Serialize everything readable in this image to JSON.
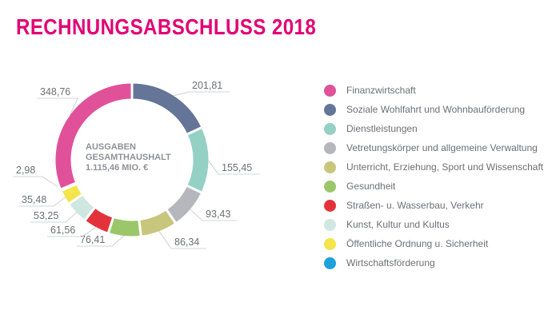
{
  "title": "RECHNUNGSABSCHLUSS 2018",
  "chart_data": {
    "type": "pie",
    "donut": true,
    "center_label": [
      "AUSGABEN",
      "GESAMTHAUSHALT",
      "1.115,46 MIO. €"
    ],
    "slices": [
      {
        "name": "Soziale Wohlfahrt und Wohnbauförderung",
        "value": 201.81,
        "label": "201,81",
        "color": "#647597"
      },
      {
        "name": "Dienstleistungen",
        "value": 155.45,
        "label": "155,45",
        "color": "#94d0c4"
      },
      {
        "name": "Vetretungskörper und allgemeine Verwaltung",
        "value": 93.43,
        "label": "93,43",
        "color": "#b5b7bd"
      },
      {
        "name": "Unterricht, Erziehung, Sport und Wissenschaft",
        "value": 86.34,
        "label": "86,34",
        "color": "#c8c67c"
      },
      {
        "name": "Gesundheit",
        "value": 76.41,
        "label": "76,41",
        "color": "#9bc76a"
      },
      {
        "name": "Straßen- u. Wasserbau, Verkehr",
        "value": 61.56,
        "label": "61,56",
        "color": "#e4323a"
      },
      {
        "name": "Kunst, Kultur und Kultus",
        "value": 53.25,
        "label": "53,25",
        "color": "#cfe7e0"
      },
      {
        "name": "Öffentliche Ordnung u. Sicherheit",
        "value": 35.48,
        "label": "35,48",
        "color": "#f3e54a"
      },
      {
        "name": "Wirtschaftsförderung",
        "value": 2.98,
        "label": "2,98",
        "color": "#1ba1dc"
      },
      {
        "name": "Finanzwirtschaft",
        "value": 348.76,
        "label": "348,76",
        "color": "#e0519a"
      }
    ],
    "legend_order": [
      9,
      0,
      1,
      2,
      3,
      4,
      5,
      6,
      7,
      8
    ],
    "legend_position": "right"
  }
}
